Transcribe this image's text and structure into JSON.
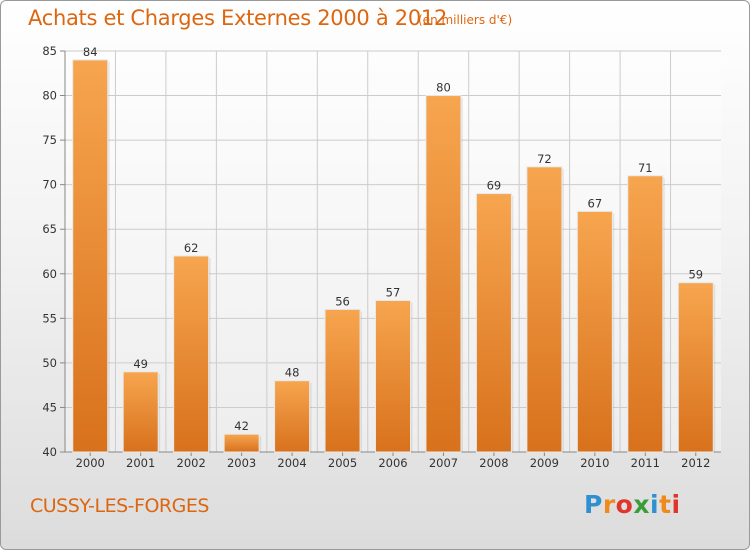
{
  "header": {
    "title": "Achats et Charges Externes 2000 à 2012",
    "unit_note": "(en milliers d'€)"
  },
  "footer": {
    "commune": "CUSSY-LES-FORGES",
    "logo": {
      "letters": [
        "P",
        "r",
        "o",
        "x",
        "i",
        "t",
        "i"
      ],
      "colors": [
        "#2f8fd0",
        "#f08a1c",
        "#e0352b",
        "#3a9d3a",
        "#2f8fd0",
        "#f08a1c",
        "#e0352b"
      ]
    }
  },
  "colors": {
    "accent": "#dd6610",
    "bar_light": "#f7a54f",
    "bar_dark": "#d8711c",
    "grid": "#cccccc"
  },
  "chart_data": {
    "type": "bar",
    "title": "Achats et Charges Externes 2000 à 2012",
    "subtitle": "(en milliers d'€)",
    "categories": [
      "2000",
      "2001",
      "2002",
      "2003",
      "2004",
      "2005",
      "2006",
      "2007",
      "2008",
      "2009",
      "2010",
      "2011",
      "2012"
    ],
    "values": [
      84,
      49,
      62,
      42,
      48,
      56,
      57,
      80,
      69,
      72,
      67,
      71,
      59
    ],
    "ylim": [
      40,
      85
    ],
    "yticks": [
      40,
      45,
      50,
      55,
      60,
      65,
      70,
      75,
      80,
      85
    ],
    "grid": true,
    "data_labels": true
  }
}
